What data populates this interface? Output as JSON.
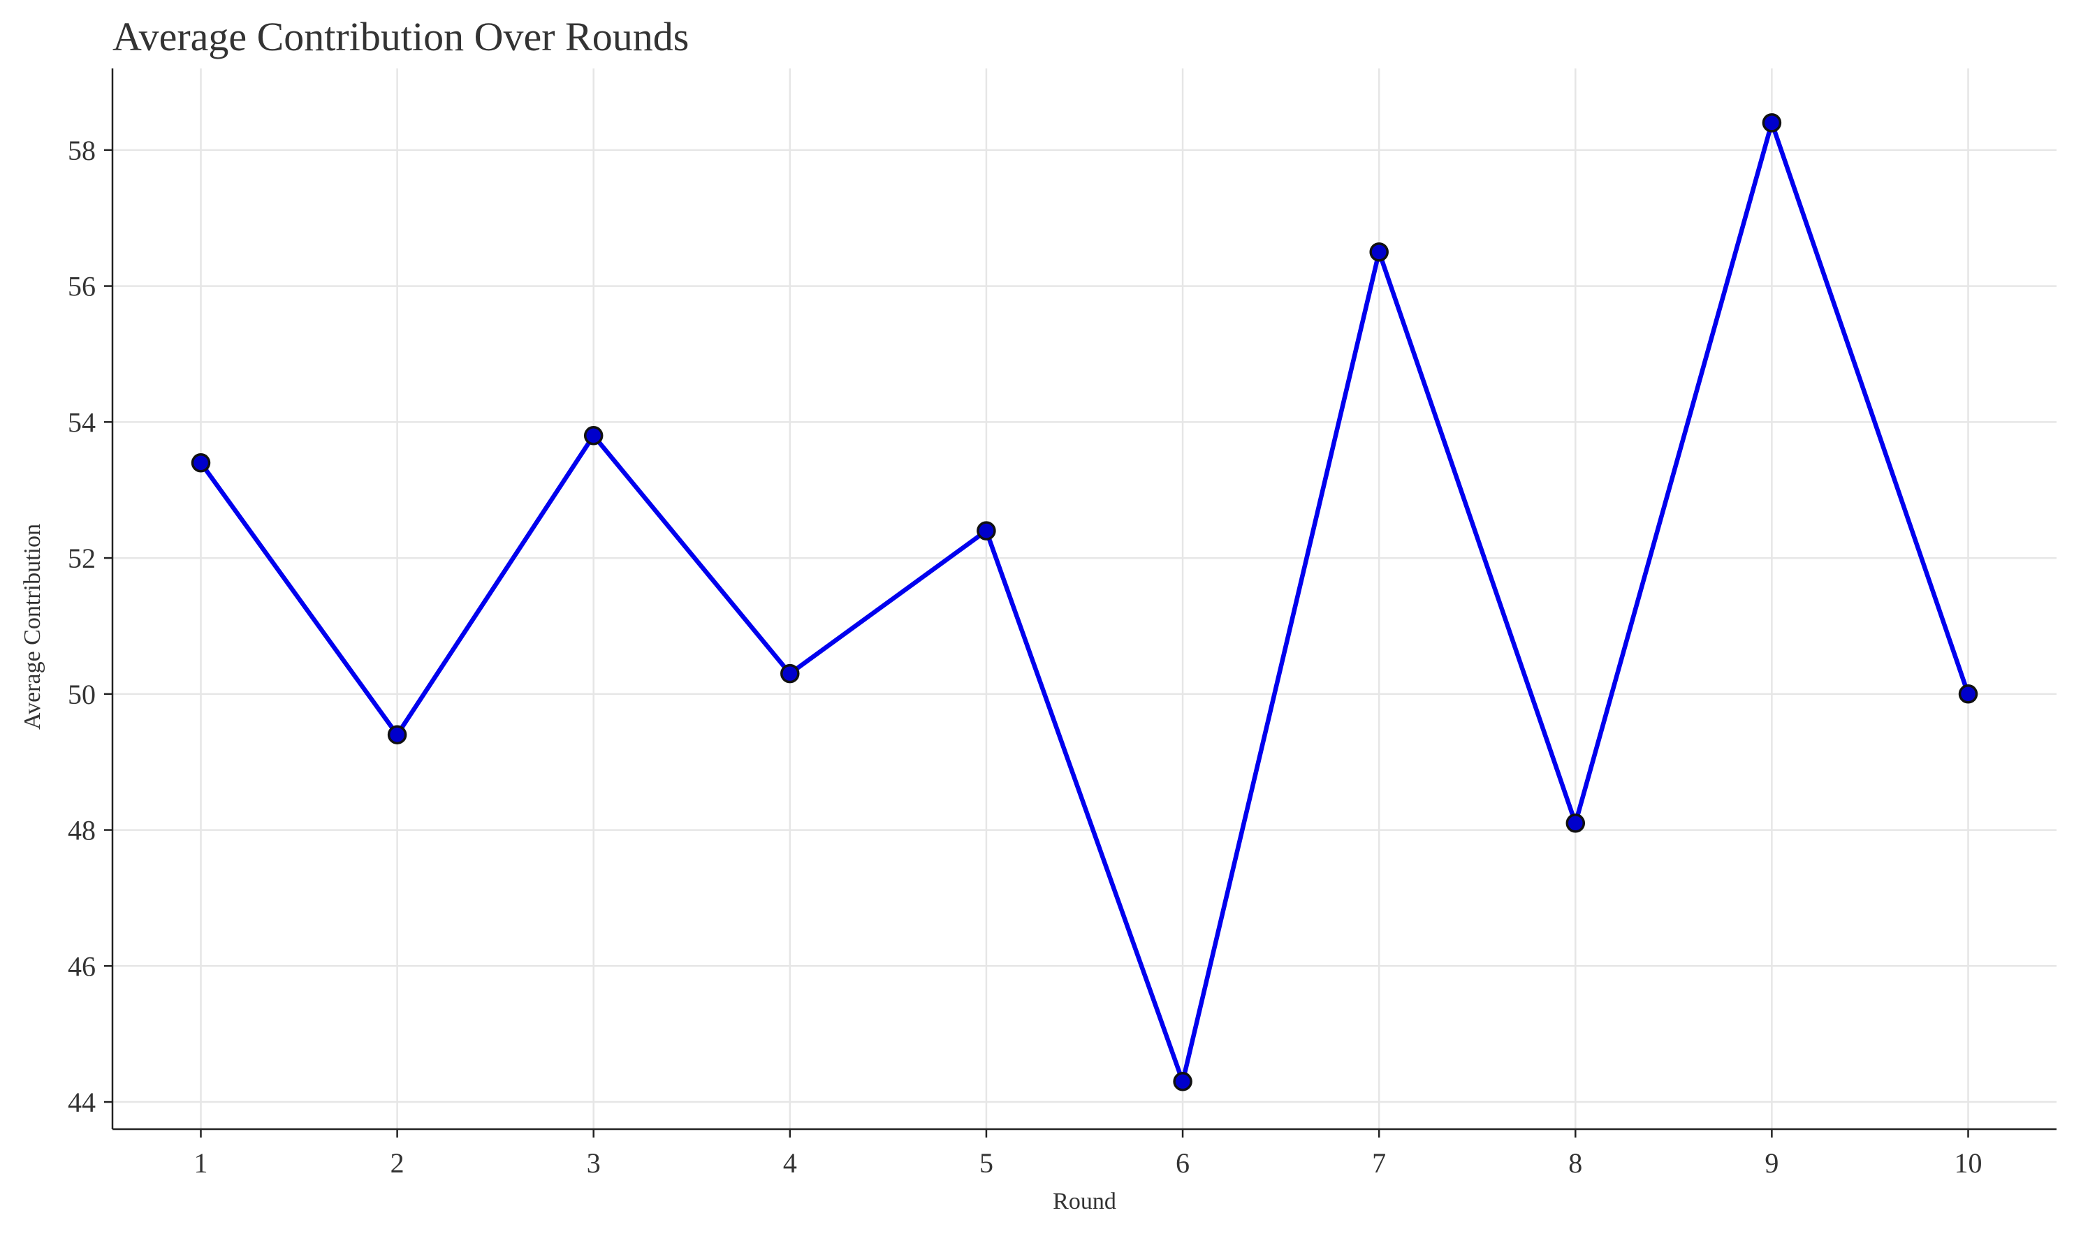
{
  "chart_data": {
    "type": "line",
    "title": "Average Contribution Over Rounds",
    "xlabel": "Round",
    "ylabel": "Average Contribution",
    "x": [
      1,
      2,
      3,
      4,
      5,
      6,
      7,
      8,
      9,
      10
    ],
    "x_tick_labels": [
      "1",
      "2",
      "3",
      "4",
      "5",
      "6",
      "7",
      "8",
      "9",
      "10"
    ],
    "y_ticks": [
      44,
      46,
      48,
      50,
      52,
      54,
      56,
      58
    ],
    "y_tick_labels": [
      "44",
      "46",
      "48",
      "50",
      "52",
      "54",
      "56",
      "58"
    ],
    "xlim": [
      0.55,
      10.45
    ],
    "ylim": [
      43.6,
      59.2
    ],
    "grid": true,
    "legend": "none",
    "series": [
      {
        "values": [
          53.4,
          49.4,
          53.8,
          50.3,
          52.4,
          44.3,
          56.5,
          48.1,
          58.4,
          50.0
        ],
        "line_color": "#0000ee",
        "marker_fill": "#0000cc",
        "marker_edge": "#111111"
      }
    ]
  }
}
